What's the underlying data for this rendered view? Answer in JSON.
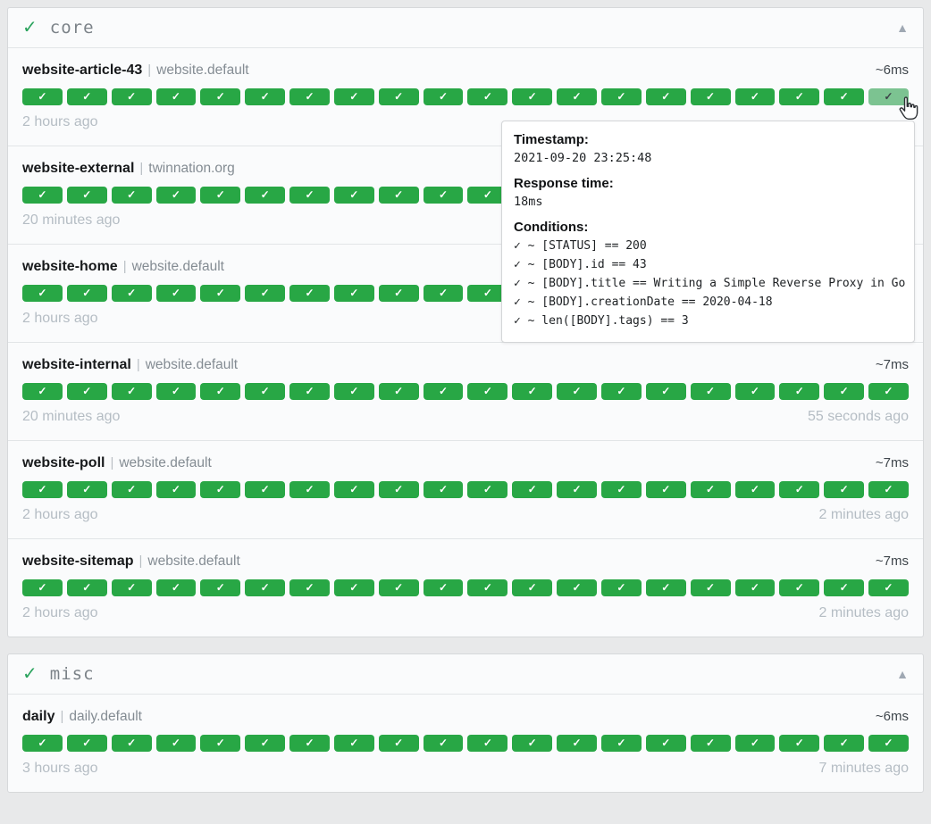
{
  "separator": "|",
  "badge_icon": "✓",
  "colors": {
    "success_badge": "#28a745",
    "hovered_badge": "#7cc391",
    "group_check": "#2aa35d",
    "page_background": "#e8e9ea"
  },
  "groups": [
    {
      "name": "core",
      "status_icon": "✓",
      "collapse_icon": "▲",
      "services": [
        {
          "name": "website-article-43",
          "group_label": "website.default",
          "response_time": "~6ms",
          "oldest_result": "2 hours ago",
          "newest_result": "",
          "badge_count": 20,
          "last_badge_hovered": true
        },
        {
          "name": "website-external",
          "group_label": "twinnation.org",
          "response_time": "",
          "oldest_result": "20 minutes ago",
          "newest_result": "",
          "badge_count": 20,
          "last_badge_hovered": false
        },
        {
          "name": "website-home",
          "group_label": "website.default",
          "response_time": "",
          "oldest_result": "2 hours ago",
          "newest_result": "",
          "badge_count": 20,
          "last_badge_hovered": false
        },
        {
          "name": "website-internal",
          "group_label": "website.default",
          "response_time": "~7ms",
          "oldest_result": "20 minutes ago",
          "newest_result": "55 seconds ago",
          "badge_count": 20,
          "last_badge_hovered": false
        },
        {
          "name": "website-poll",
          "group_label": "website.default",
          "response_time": "~7ms",
          "oldest_result": "2 hours ago",
          "newest_result": "2 minutes ago",
          "badge_count": 20,
          "last_badge_hovered": false
        },
        {
          "name": "website-sitemap",
          "group_label": "website.default",
          "response_time": "~7ms",
          "oldest_result": "2 hours ago",
          "newest_result": "2 minutes ago",
          "badge_count": 20,
          "last_badge_hovered": false
        }
      ]
    },
    {
      "name": "misc",
      "status_icon": "✓",
      "collapse_icon": "▲",
      "services": [
        {
          "name": "daily",
          "group_label": "daily.default",
          "response_time": "~6ms",
          "oldest_result": "3 hours ago",
          "newest_result": "7 minutes ago",
          "badge_count": 20,
          "last_badge_hovered": false
        }
      ]
    }
  ],
  "tooltip": {
    "timestamp_label": "Timestamp:",
    "timestamp": "2021-09-20 23:25:48",
    "response_time_label": "Response time:",
    "response_time": "18ms",
    "conditions_label": "Conditions:",
    "conditions": [
      "✓ ~ [STATUS] == 200",
      "✓ ~ [BODY].id == 43",
      "✓ ~ [BODY].title == Writing a Simple Reverse Proxy in Go",
      "✓ ~ [BODY].creationDate == 2020-04-18",
      "✓ ~ len([BODY].tags) == 3"
    ]
  }
}
